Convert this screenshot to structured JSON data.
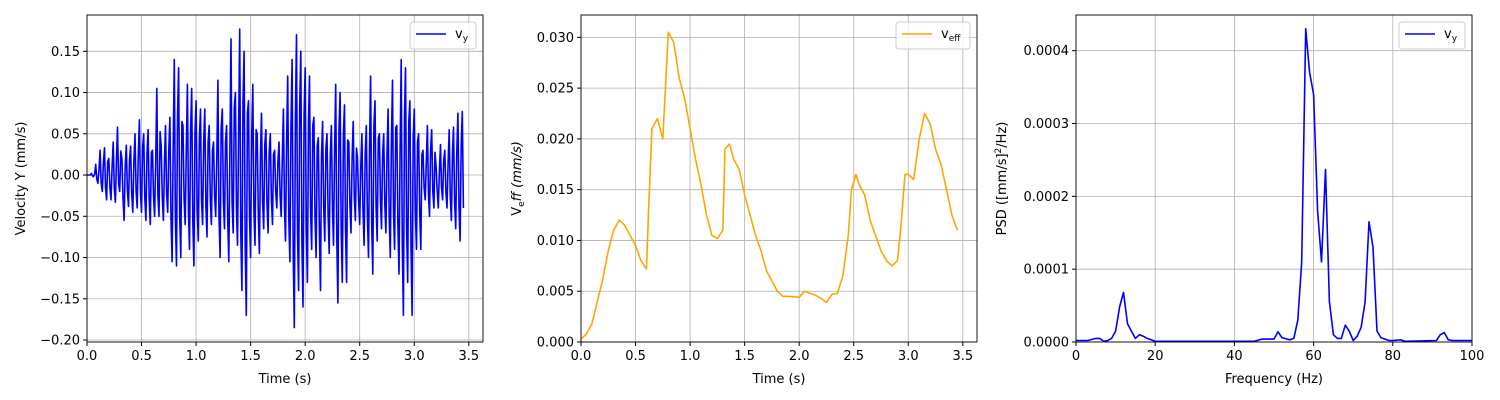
{
  "chart_data": [
    {
      "type": "line",
      "xlabel": "Time (s)",
      "ylabel": "Velocity Y (mm/s)",
      "legend": "v",
      "legend_sub": "y",
      "legend_position": "top-right",
      "color": "#0000ff",
      "xlim": [
        0,
        3.63
      ],
      "ylim": [
        -0.2024,
        0.194
      ],
      "grid": true,
      "xticks": [
        0,
        0.5,
        1,
        1.5,
        2,
        2.5,
        3,
        3.5
      ],
      "xtick_labels": [
        "0.0",
        "0.5",
        "1.0",
        "1.5",
        "2.0",
        "2.5",
        "3.0",
        "3.5"
      ],
      "yticks": [
        -0.2,
        -0.15,
        -0.1,
        -0.05,
        0,
        0.05,
        0.1,
        0.15
      ],
      "ytick_labels": [
        "−0.20",
        "−0.15",
        "−0.10",
        "−0.05",
        "0.00",
        "0.05",
        "0.10",
        "0.15"
      ],
      "t_step": 0.04,
      "peaks_pos": [
        0,
        0.002,
        0.013,
        0.03,
        0.033,
        0.02,
        0.04,
        0.058,
        0.02,
        0.036,
        0.035,
        0.05,
        0.067,
        0.05,
        0.055,
        0.03,
        0.105,
        0.035,
        0.06,
        0.07,
        0.14,
        0.13,
        0.06,
        0.11,
        0.105,
        0.09,
        0.08,
        0.08,
        0.06,
        0.04,
        0.115,
        0.08,
        0.06,
        0.165,
        0.1,
        0.177,
        0.15,
        0.09,
        0.11,
        0.05,
        0.075,
        0.055,
        0.05,
        0.03,
        0.04,
        0.08,
        0.12,
        0.14,
        0.17,
        0.15,
        0.13,
        0.12,
        0.07,
        0.045,
        0.065,
        0.05,
        0.06,
        0.11,
        0.1,
        0.085,
        0.04,
        0.065,
        0.02,
        0.05,
        0.06,
        0.12,
        0.09,
        0.05,
        0.05,
        0.08,
        0.115,
        0.06,
        0.14,
        0.13,
        0.09,
        0.08,
        0.05,
        0.03,
        0.06,
        0.055,
        0.01,
        0.037,
        0.03,
        0.055,
        0.058,
        0.075,
        0.077
      ],
      "peaks_neg": [
        0,
        -0.002,
        -0.01,
        -0.02,
        -0.03,
        -0.03,
        -0.033,
        -0.02,
        -0.055,
        -0.038,
        -0.045,
        -0.04,
        -0.045,
        -0.055,
        -0.06,
        -0.05,
        -0.05,
        -0.055,
        -0.045,
        -0.105,
        -0.11,
        -0.1,
        -0.06,
        -0.09,
        -0.11,
        -0.08,
        -0.06,
        -0.075,
        -0.06,
        -0.05,
        -0.1,
        -0.065,
        -0.105,
        -0.07,
        -0.085,
        -0.14,
        -0.17,
        -0.1,
        -0.085,
        -0.095,
        -0.065,
        -0.07,
        -0.06,
        -0.04,
        -0.05,
        -0.08,
        -0.105,
        -0.185,
        -0.14,
        -0.16,
        -0.13,
        -0.09,
        -0.1,
        -0.14,
        -0.08,
        -0.095,
        -0.085,
        -0.155,
        -0.13,
        -0.13,
        -0.07,
        -0.055,
        -0.06,
        -0.085,
        -0.1,
        -0.12,
        -0.08,
        -0.065,
        -0.07,
        -0.1,
        -0.09,
        -0.12,
        -0.17,
        -0.13,
        -0.17,
        -0.09,
        -0.09,
        -0.03,
        -0.05,
        -0.04,
        -0.04,
        -0.03,
        -0.04,
        -0.055,
        -0.065,
        -0.08,
        -0.08
      ]
    },
    {
      "type": "line",
      "xlabel": "Time (s)",
      "ylabel": "V",
      "ylabel_sub": "e",
      "ylabel_rest": "ff (mm/s)",
      "legend": "v",
      "legend_sub": "eff",
      "legend_position": "top-right",
      "color": "#ffa500",
      "xlim": [
        0,
        3.63
      ],
      "ylim": [
        0,
        0.0322
      ],
      "grid": true,
      "xticks": [
        0,
        0.5,
        1,
        1.5,
        2,
        2.5,
        3,
        3.5
      ],
      "xtick_labels": [
        "0.0",
        "0.5",
        "1.0",
        "1.5",
        "2.0",
        "2.5",
        "3.0",
        "3.5"
      ],
      "yticks": [
        0,
        0.005,
        0.01,
        0.015,
        0.02,
        0.025,
        0.03
      ],
      "ytick_labels": [
        "0.000",
        "0.005",
        "0.010",
        "0.015",
        "0.020",
        "0.025",
        "0.030"
      ],
      "x": [
        0,
        0.05,
        0.1,
        0.15,
        0.2,
        0.25,
        0.3,
        0.35,
        0.4,
        0.45,
        0.5,
        0.55,
        0.6,
        0.62,
        0.65,
        0.7,
        0.75,
        0.8,
        0.85,
        0.9,
        0.95,
        1.0,
        1.05,
        1.1,
        1.15,
        1.2,
        1.25,
        1.3,
        1.32,
        1.36,
        1.4,
        1.45,
        1.5,
        1.55,
        1.6,
        1.65,
        1.7,
        1.75,
        1.8,
        1.85,
        1.9,
        2.0,
        2.05,
        2.1,
        2.15,
        2.2,
        2.25,
        2.3,
        2.35,
        2.4,
        2.45,
        2.48,
        2.52,
        2.55,
        2.6,
        2.65,
        2.7,
        2.75,
        2.8,
        2.85,
        2.9,
        2.93,
        2.97,
        3.0,
        3.05,
        3.1,
        3.15,
        3.2,
        3.25,
        3.3,
        3.35,
        3.4,
        3.45
      ],
      "y": [
        0.0003,
        0.0008,
        0.0018,
        0.004,
        0.0062,
        0.009,
        0.011,
        0.012,
        0.0115,
        0.0105,
        0.0095,
        0.008,
        0.0072,
        0.013,
        0.021,
        0.022,
        0.02,
        0.0305,
        0.0295,
        0.026,
        0.024,
        0.021,
        0.018,
        0.0155,
        0.0125,
        0.0105,
        0.0102,
        0.011,
        0.019,
        0.0195,
        0.018,
        0.017,
        0.0145,
        0.0125,
        0.0105,
        0.009,
        0.007,
        0.006,
        0.005,
        0.0045,
        0.0045,
        0.0044,
        0.005,
        0.0048,
        0.0046,
        0.0043,
        0.0039,
        0.0047,
        0.0048,
        0.0065,
        0.0105,
        0.015,
        0.0165,
        0.0155,
        0.0145,
        0.012,
        0.0105,
        0.009,
        0.008,
        0.0075,
        0.008,
        0.011,
        0.0165,
        0.0165,
        0.016,
        0.02,
        0.0225,
        0.0215,
        0.019,
        0.0175,
        0.015,
        0.0125,
        0.011
      ]
    },
    {
      "type": "line",
      "xlabel": "Frequency (Hz)",
      "ylabel": "PSD ([mm/s]",
      "ylabel_sup": "2",
      "ylabel_rest": "/Hz)",
      "legend": "v",
      "legend_sub": "y",
      "legend_position": "top-right",
      "color": "#0000ff",
      "xlim": [
        0,
        100
      ],
      "ylim": [
        0,
        0.000449
      ],
      "grid": true,
      "xticks": [
        0,
        20,
        40,
        60,
        80,
        100
      ],
      "xtick_labels": [
        "0",
        "20",
        "40",
        "60",
        "80",
        "100"
      ],
      "yticks": [
        0,
        0.0001,
        0.0002,
        0.0003,
        0.0004
      ],
      "ytick_labels": [
        "0.0000",
        "0.0001",
        "0.0002",
        "0.0003",
        "0.0004"
      ],
      "x": [
        0,
        3,
        5,
        6,
        7,
        8,
        9,
        10,
        11,
        12,
        13,
        14,
        15,
        16,
        17,
        18,
        20,
        45,
        47,
        50,
        51,
        52,
        54,
        55,
        56,
        57,
        58,
        59,
        60,
        61,
        62,
        63,
        64,
        65,
        66,
        67,
        68,
        69,
        70,
        71,
        72,
        73,
        74,
        75,
        76,
        77,
        79,
        80,
        82,
        83,
        91,
        92,
        93,
        94,
        95,
        100
      ],
      "y": [
        2e-06,
        2e-06,
        5e-06,
        5e-06,
        1e-06,
        2e-06,
        5e-06,
        1.5e-05,
        4.8e-05,
        6.8e-05,
        2.5e-05,
        1.5e-05,
        5e-06,
        1e-05,
        8e-06,
        5e-06,
        1e-06,
        1e-06,
        4e-06,
        4e-06,
        1.4e-05,
        6e-06,
        3e-06,
        5e-06,
        3e-05,
        0.00011,
        0.00043,
        0.00037,
        0.00034,
        0.00018,
        0.00011,
        0.000237,
        5.5e-05,
        1e-05,
        5e-06,
        5e-06,
        2.3e-05,
        1.5e-05,
        2e-06,
        8e-06,
        2e-05,
        5.5e-05,
        0.000165,
        0.00013,
        1.5e-05,
        6e-06,
        2e-06,
        2e-06,
        3e-06,
        1e-06,
        2e-06,
        1e-05,
        1.3e-05,
        3e-06,
        2e-06,
        2e-06
      ]
    }
  ]
}
